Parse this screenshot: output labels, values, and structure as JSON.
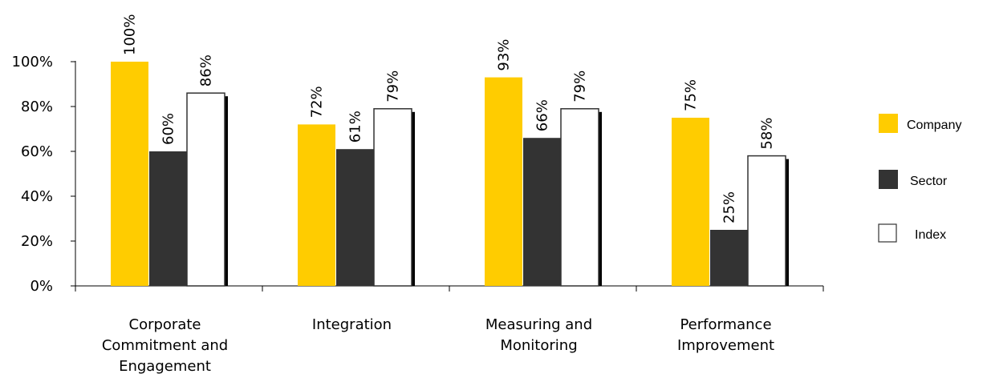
{
  "chart_data": {
    "type": "bar",
    "categories": [
      [
        "Corporate",
        "Commitment and",
        "Engagement"
      ],
      [
        "Integration"
      ],
      [
        "Measuring and",
        "Monitoring"
      ],
      [
        "Performance",
        "Improvement"
      ]
    ],
    "series": [
      {
        "name": "Company",
        "values": [
          100,
          72,
          93,
          75
        ],
        "color": "#FFCC00",
        "labels": [
          "100%",
          "72%",
          "93%",
          "75%"
        ]
      },
      {
        "name": "Sector",
        "values": [
          60,
          61,
          66,
          25
        ],
        "color": "#333333",
        "labels": [
          "60%",
          "61%",
          "66%",
          "25%"
        ]
      },
      {
        "name": "Index",
        "values": [
          86,
          79,
          79,
          58
        ],
        "color": "#FFFFFF",
        "labels": [
          "86%",
          "79%",
          "79%",
          "58%"
        ]
      }
    ],
    "ylim": [
      0,
      100
    ],
    "yticks": [
      0,
      20,
      40,
      60,
      80,
      100
    ],
    "ytick_labels": [
      "0%",
      "20%",
      "40%",
      "60%",
      "80%",
      "100%"
    ],
    "legend_position": "right",
    "grid": false
  }
}
